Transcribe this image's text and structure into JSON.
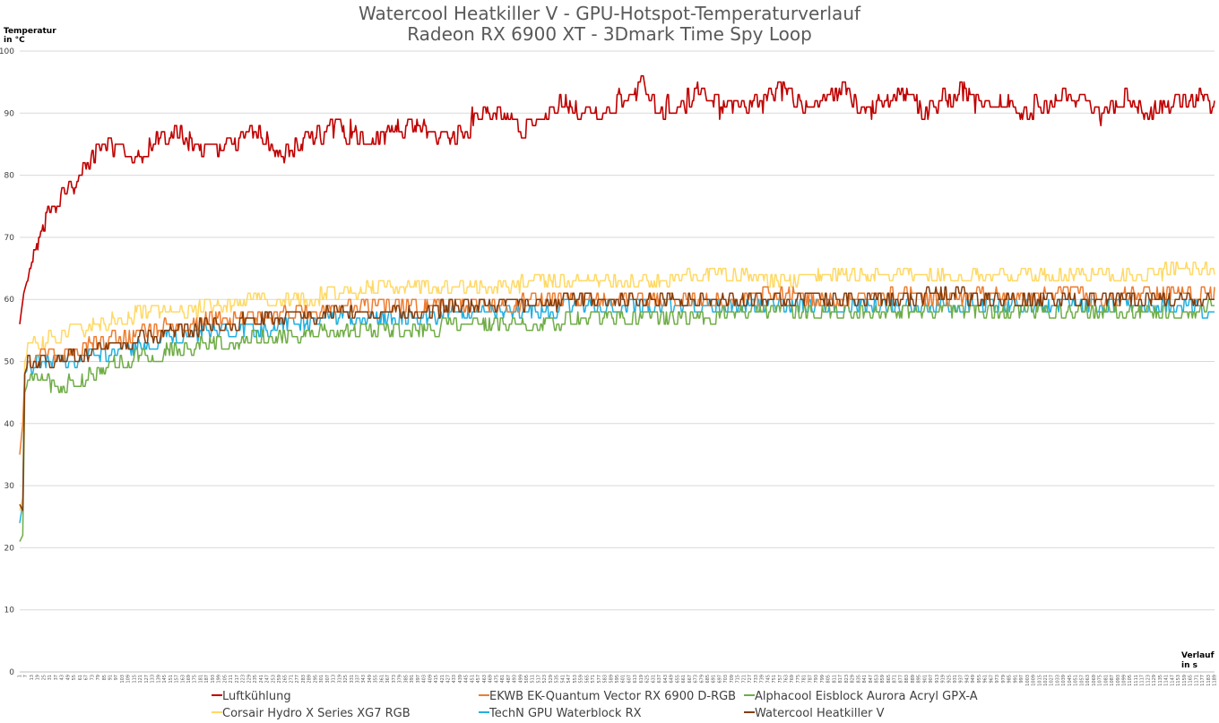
{
  "chart_data": {
    "type": "line",
    "title": "Watercool Heatkiller V - GPU-Hotspot-Temperaturverlauf",
    "subtitle": "Radeon RX 6900 XT - 3Dmark Time Spy Loop",
    "ylabel_line1": "Temperatur",
    "ylabel_line2": "in °C",
    "xlabel_line1": "Verlauf",
    "xlabel_line2": "in s",
    "ylim": [
      0,
      100
    ],
    "yticks": [
      0,
      10,
      20,
      30,
      40,
      50,
      60,
      70,
      80,
      90,
      100
    ],
    "xlim": [
      1,
      1189
    ],
    "xtick_step": 6,
    "grid": true,
    "legend_position": "bottom",
    "series": [
      {
        "name": "Luftkühlung",
        "color": "#c00000",
        "x": [
          1,
          5,
          10,
          20,
          30,
          45,
          60,
          75,
          85,
          100,
          120,
          140,
          160,
          180,
          200,
          220,
          240,
          260,
          280,
          300,
          320,
          340,
          360,
          380,
          400,
          420,
          440,
          460,
          480,
          500,
          520,
          540,
          560,
          580,
          600,
          620,
          640,
          660,
          680,
          700,
          720,
          740,
          760,
          780,
          800,
          820,
          840,
          860,
          880,
          900,
          920,
          940,
          960,
          980,
          1000,
          1020,
          1040,
          1060,
          1080,
          1100,
          1120,
          1140,
          1160,
          1175,
          1189
        ],
        "values": [
          56,
          61,
          64,
          70,
          74,
          77,
          80,
          83,
          85,
          84,
          83,
          86,
          87,
          84,
          84,
          86,
          87,
          83,
          85,
          87,
          88,
          86,
          86,
          88,
          88,
          86,
          87,
          90,
          90,
          87,
          89,
          92,
          90,
          90,
          92,
          94,
          90,
          92,
          94,
          91,
          91,
          92,
          94,
          91,
          92,
          94,
          90,
          92,
          93,
          90,
          92,
          93,
          91,
          92,
          90,
          91,
          93,
          92,
          90,
          92,
          90,
          91,
          92,
          93,
          90
        ]
      },
      {
        "name": "EKWB EK-Quantum Vector RX 6900 D-RGB",
        "color": "#ed7d31",
        "x": [
          1,
          4,
          6,
          10,
          20,
          40,
          60,
          80,
          100,
          130,
          160,
          200,
          240,
          280,
          320,
          360,
          400,
          440,
          480,
          520,
          560,
          600,
          640,
          680,
          720,
          760,
          800,
          840,
          880,
          920,
          960,
          1000,
          1040,
          1080,
          1120,
          1160,
          1189
        ],
        "values": [
          35,
          40,
          48,
          50,
          51,
          51,
          52,
          53,
          54,
          55,
          56,
          57,
          57,
          58,
          59,
          59,
          59,
          59,
          59,
          60,
          60,
          60,
          60,
          60,
          60,
          61,
          60,
          60,
          61,
          60,
          61,
          60,
          61,
          60,
          61,
          61,
          61
        ]
      },
      {
        "name": "Alphacool Eisblock Aurora Acryl GPX-A",
        "color": "#70ad47",
        "x": [
          1,
          4,
          6,
          10,
          20,
          40,
          60,
          80,
          100,
          130,
          160,
          200,
          240,
          280,
          320,
          360,
          400,
          440,
          480,
          520,
          560,
          600,
          640,
          680,
          720,
          760,
          800,
          840,
          880,
          920,
          960,
          1000,
          1040,
          1080,
          1120,
          1160,
          1189
        ],
        "values": [
          21,
          22,
          45,
          47,
          47,
          46,
          47,
          48,
          50,
          51,
          52,
          53,
          54,
          54,
          55,
          55,
          55,
          56,
          56,
          56,
          57,
          57,
          57,
          57,
          58,
          58,
          58,
          58,
          58,
          58,
          58,
          58,
          58,
          58,
          58,
          58,
          59
        ]
      },
      {
        "name": "Corsair Hydro X Series XG7 RGB",
        "color": "#ffd966",
        "x": [
          1,
          4,
          6,
          10,
          20,
          40,
          60,
          80,
          100,
          130,
          160,
          200,
          240,
          280,
          320,
          360,
          400,
          440,
          480,
          520,
          560,
          600,
          640,
          680,
          720,
          760,
          800,
          840,
          880,
          920,
          960,
          1000,
          1040,
          1080,
          1120,
          1160,
          1189
        ],
        "values": [
          26,
          28,
          50,
          52,
          53,
          54,
          55,
          56,
          57,
          58,
          58,
          59,
          60,
          60,
          61,
          62,
          62,
          62,
          62,
          63,
          63,
          63,
          63,
          64,
          64,
          63,
          64,
          64,
          64,
          64,
          64,
          64,
          64,
          64,
          64,
          65,
          65
        ]
      },
      {
        "name": "TechN GPU Waterblock RX",
        "color": "#23b0e0",
        "x": [
          1,
          4,
          6,
          10,
          20,
          40,
          60,
          80,
          100,
          130,
          160,
          200,
          240,
          280,
          320,
          360,
          400,
          440,
          480,
          520,
          560,
          600,
          640,
          680,
          720,
          760,
          800,
          840,
          880,
          920,
          960,
          1000,
          1040,
          1080,
          1120,
          1160,
          1189
        ],
        "values": [
          24,
          27,
          48,
          49,
          50,
          50,
          50,
          51,
          52,
          53,
          54,
          55,
          55,
          56,
          57,
          57,
          57,
          58,
          58,
          58,
          59,
          59,
          59,
          59,
          59,
          59,
          59,
          59,
          59,
          59,
          59,
          59,
          59,
          59,
          59,
          59,
          58
        ]
      },
      {
        "name": "Watercool Heatkiller V",
        "color": "#843c0c",
        "x": [
          1,
          4,
          6,
          10,
          20,
          40,
          60,
          80,
          100,
          130,
          160,
          200,
          240,
          280,
          320,
          360,
          400,
          440,
          480,
          520,
          560,
          600,
          640,
          680,
          720,
          760,
          800,
          840,
          880,
          920,
          960,
          1000,
          1040,
          1080,
          1120,
          1160,
          1189
        ],
        "values": [
          27,
          26,
          48,
          50,
          50,
          50,
          51,
          52,
          53,
          54,
          55,
          56,
          57,
          57,
          58,
          58,
          58,
          59,
          59,
          59,
          60,
          60,
          60,
          60,
          60,
          60,
          60,
          60,
          60,
          61,
          60,
          60,
          60,
          60,
          60,
          60,
          60
        ]
      }
    ]
  }
}
